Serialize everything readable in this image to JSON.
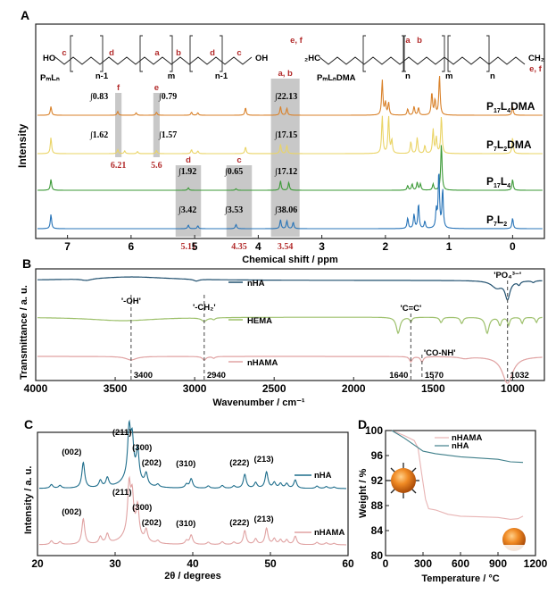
{
  "chart_data": [
    {
      "panel": "A",
      "type": "line",
      "title": "",
      "xlabel": "Chemical shift / ppm",
      "ylabel": "Intensity",
      "xlim": [
        7.5,
        -0.5
      ],
      "xticks": [
        7,
        6,
        5,
        4,
        3,
        2,
        1,
        0
      ],
      "structures": [
        {
          "name": "PmLn",
          "label": "PₘLₙ",
          "site_labels": [
            "c",
            "d",
            "a",
            "b",
            "d",
            "c"
          ],
          "repeat_labels": [
            "n-1",
            "m",
            "n-1"
          ],
          "end_groups": [
            "HO",
            "OH"
          ]
        },
        {
          "name": "PmLnDMA",
          "label": "PₘLₙDMA",
          "site_labels": [
            "e, f",
            "a",
            "b",
            "e, f"
          ],
          "repeat_labels": [
            "n",
            "m",
            "n"
          ],
          "end_groups": [
            "₂HC",
            "CH₂"
          ]
        }
      ],
      "series": [
        {
          "name": "P17L4DMA",
          "label_main": "P",
          "label_sub1": "17",
          "label_mid": "L",
          "label_sub2": "4",
          "label_tail": "DMA",
          "color": "#d9822b",
          "integrals": {
            "f": "∫0.83",
            "e": "∫0.79",
            "ab": "∫22.13"
          },
          "peaks": [
            [
              7.26,
              0.35
            ],
            [
              6.21,
              0.15
            ],
            [
              5.92,
              0.1
            ],
            [
              5.6,
              0.12
            ],
            [
              5.05,
              0.12
            ],
            [
              4.95,
              0.1
            ],
            [
              4.2,
              0.3
            ],
            [
              3.65,
              0.35
            ],
            [
              3.55,
              0.28
            ],
            [
              2.05,
              1.4
            ],
            [
              2.0,
              0.5
            ],
            [
              1.95,
              0.5
            ],
            [
              1.65,
              0.25
            ],
            [
              1.55,
              0.35
            ],
            [
              1.48,
              0.3
            ],
            [
              1.27,
              0.9
            ],
            [
              1.22,
              0.6
            ],
            [
              1.15,
              1.6
            ],
            [
              0.0,
              0.35
            ]
          ]
        },
        {
          "name": "P7L2DMA",
          "label_main": "P",
          "label_sub1": "7",
          "label_mid": "L",
          "label_sub2": "2",
          "label_tail": "DMA",
          "color": "#ead466",
          "integrals": {
            "f": "∫1.62",
            "e": "∫1.57",
            "ab": "∫17.15"
          },
          "peaks": [
            [
              7.26,
              0.6
            ],
            [
              6.21,
              0.15
            ],
            [
              6.1,
              0.1
            ],
            [
              5.9,
              0.08
            ],
            [
              5.6,
              0.12
            ],
            [
              5.05,
              0.15
            ],
            [
              4.95,
              0.1
            ],
            [
              4.2,
              0.25
            ],
            [
              3.65,
              0.35
            ],
            [
              3.55,
              0.3
            ],
            [
              2.05,
              1.4
            ],
            [
              1.95,
              1.4
            ],
            [
              1.9,
              0.5
            ],
            [
              1.6,
              0.45
            ],
            [
              1.5,
              0.6
            ],
            [
              1.38,
              0.3
            ],
            [
              1.25,
              0.9
            ],
            [
              1.2,
              0.6
            ],
            [
              1.12,
              1.4
            ],
            [
              0.0,
              0.6
            ]
          ]
        },
        {
          "name": "P17L4",
          "label_main": "P",
          "label_sub1": "17",
          "label_mid": "L",
          "label_sub2": "4",
          "label_tail": "",
          "color": "#3c9a37",
          "integrals": {
            "d": "∫1.92",
            "c": "∫0.65",
            "ab": "∫17.12"
          },
          "peaks": [
            [
              7.26,
              0.35
            ],
            [
              5.1,
              0.08
            ],
            [
              4.35,
              0.05
            ],
            [
              3.65,
              0.3
            ],
            [
              3.52,
              0.25
            ],
            [
              1.65,
              0.15
            ],
            [
              1.58,
              0.2
            ],
            [
              1.5,
              0.25
            ],
            [
              1.45,
              0.2
            ],
            [
              1.25,
              0.2
            ],
            [
              1.12,
              1.5
            ],
            [
              0.0,
              0.35
            ]
          ]
        },
        {
          "name": "P7L2",
          "label_main": "P",
          "label_sub1": "7",
          "label_mid": "L",
          "label_sub2": "2",
          "label_tail": "",
          "color": "#2874b8",
          "integrals": {
            "d": "∫3.42",
            "c": "∫3.53",
            "ab": "∫38.06"
          },
          "peaks": [
            [
              7.26,
              0.4
            ],
            [
              5.1,
              0.1
            ],
            [
              4.95,
              0.08
            ],
            [
              4.35,
              0.12
            ],
            [
              3.65,
              0.25
            ],
            [
              3.55,
              0.22
            ],
            [
              3.45,
              0.18
            ],
            [
              1.65,
              0.3
            ],
            [
              1.55,
              0.4
            ],
            [
              1.48,
              0.7
            ],
            [
              1.38,
              0.2
            ],
            [
              1.2,
              0.5
            ],
            [
              1.16,
              1.6
            ],
            [
              1.1,
              1.1
            ],
            [
              0.0,
              0.3
            ]
          ]
        }
      ],
      "highlight_regions": [
        {
          "label": "f",
          "shift_label": "6.21",
          "range": [
            6.25,
            6.15
          ]
        },
        {
          "label": "e",
          "shift_label": "5.6",
          "range": [
            5.65,
            5.55
          ]
        },
        {
          "label": "d",
          "shift_label": "5.11",
          "range": [
            5.3,
            4.9
          ]
        },
        {
          "label": "c",
          "shift_label": "4.35",
          "range": [
            4.5,
            4.1
          ]
        },
        {
          "label": "a, b",
          "shift_label": "3.54",
          "range": [
            3.8,
            3.35
          ]
        }
      ]
    },
    {
      "panel": "B",
      "type": "line",
      "title": "",
      "xlabel": "Wavenumber / cm⁻¹",
      "ylabel": "Transmittance  / a. u.",
      "xlim": [
        4000,
        800
      ],
      "xticks": [
        4000,
        3500,
        3000,
        2500,
        2000,
        1500,
        1000
      ],
      "series": [
        {
          "name": "nHA",
          "color": "#1f4f6e"
        },
        {
          "name": "HEMA",
          "color": "#9dc06b"
        },
        {
          "name": "nHAMA",
          "color": "#e0a2a2"
        }
      ],
      "annotations": [
        {
          "label": "'-OH'",
          "x": 3400,
          "x_label": "3400"
        },
        {
          "label": "'-CH₂'",
          "x": 2940,
          "x_label": "2940"
        },
        {
          "label": "'C=C'",
          "x": 1640,
          "x_label": "1640"
        },
        {
          "label": "'CO-NH'",
          "x": 1570,
          "x_label": "1570"
        },
        {
          "label": "'PO₄³⁻'",
          "x": 1032,
          "x_label": "1032"
        }
      ]
    },
    {
      "panel": "C",
      "type": "line",
      "title": "",
      "xlabel": "2θ / degrees",
      "ylabel": "Intensity  / a. u.",
      "xlim": [
        20,
        60
      ],
      "xticks": [
        20,
        30,
        40,
        50,
        60
      ],
      "series": [
        {
          "name": "nHA",
          "color": "#1f6e8c"
        },
        {
          "name": "nHAMA",
          "color": "#e0a2a2"
        }
      ],
      "peaks": [
        [
          21.8,
          0.08
        ],
        [
          22.9,
          0.06
        ],
        [
          25.9,
          0.55
        ],
        [
          28.1,
          0.15
        ],
        [
          29.0,
          0.2
        ],
        [
          31.8,
          1.0
        ],
        [
          32.2,
          0.75
        ],
        [
          32.9,
          0.65
        ],
        [
          34.0,
          0.25
        ],
        [
          35.5,
          0.06
        ],
        [
          39.2,
          0.08
        ],
        [
          39.8,
          0.2
        ],
        [
          42.0,
          0.05
        ],
        [
          43.8,
          0.06
        ],
        [
          45.3,
          0.05
        ],
        [
          46.7,
          0.3
        ],
        [
          48.1,
          0.12
        ],
        [
          49.5,
          0.35
        ],
        [
          50.5,
          0.12
        ],
        [
          51.3,
          0.1
        ],
        [
          52.1,
          0.1
        ],
        [
          53.2,
          0.18
        ],
        [
          56.0,
          0.05
        ],
        [
          57.2,
          0.04
        ],
        [
          58.2,
          0.03
        ]
      ],
      "peak_labels": [
        {
          "label": "(002)",
          "x": 25.9
        },
        {
          "label": "(211)",
          "x": 31.8
        },
        {
          "label": "(300)",
          "x": 32.9
        },
        {
          "label": "(202)",
          "x": 34.0
        },
        {
          "label": "(310)",
          "x": 39.8
        },
        {
          "label": "(222)",
          "x": 46.7
        },
        {
          "label": "(213)",
          "x": 49.5
        }
      ]
    },
    {
      "panel": "D",
      "type": "line",
      "title": "",
      "xlabel": "Temperature / °C",
      "ylabel": "Weight / %",
      "xlim": [
        0,
        1200
      ],
      "ylim": [
        80,
        100
      ],
      "xticks": [
        0,
        300,
        600,
        900,
        1200
      ],
      "yticks": [
        80,
        84,
        88,
        92,
        96,
        100
      ],
      "series": [
        {
          "name": "nHAMA",
          "color": "#e8b4b4",
          "points": [
            [
              50,
              100
            ],
            [
              150,
              99.2
            ],
            [
              230,
              98.4
            ],
            [
              260,
              97.2
            ],
            [
              290,
              93
            ],
            [
              320,
              89
            ],
            [
              345,
              87.5
            ],
            [
              400,
              87.3
            ],
            [
              500,
              86.6
            ],
            [
              600,
              86.3
            ],
            [
              750,
              86.2
            ],
            [
              900,
              86.1
            ],
            [
              1000,
              85.8
            ],
            [
              1060,
              85.9
            ],
            [
              1100,
              86.3
            ]
          ]
        },
        {
          "name": "nHA",
          "color": "#3f7f8a",
          "points": [
            [
              50,
              100
            ],
            [
              150,
              98.8
            ],
            [
              250,
              97.4
            ],
            [
              300,
              96.7
            ],
            [
              400,
              96.3
            ],
            [
              600,
              95.8
            ],
            [
              750,
              95.6
            ],
            [
              900,
              95.4
            ],
            [
              1000,
              95.0
            ],
            [
              1100,
              94.9
            ]
          ]
        }
      ]
    }
  ]
}
